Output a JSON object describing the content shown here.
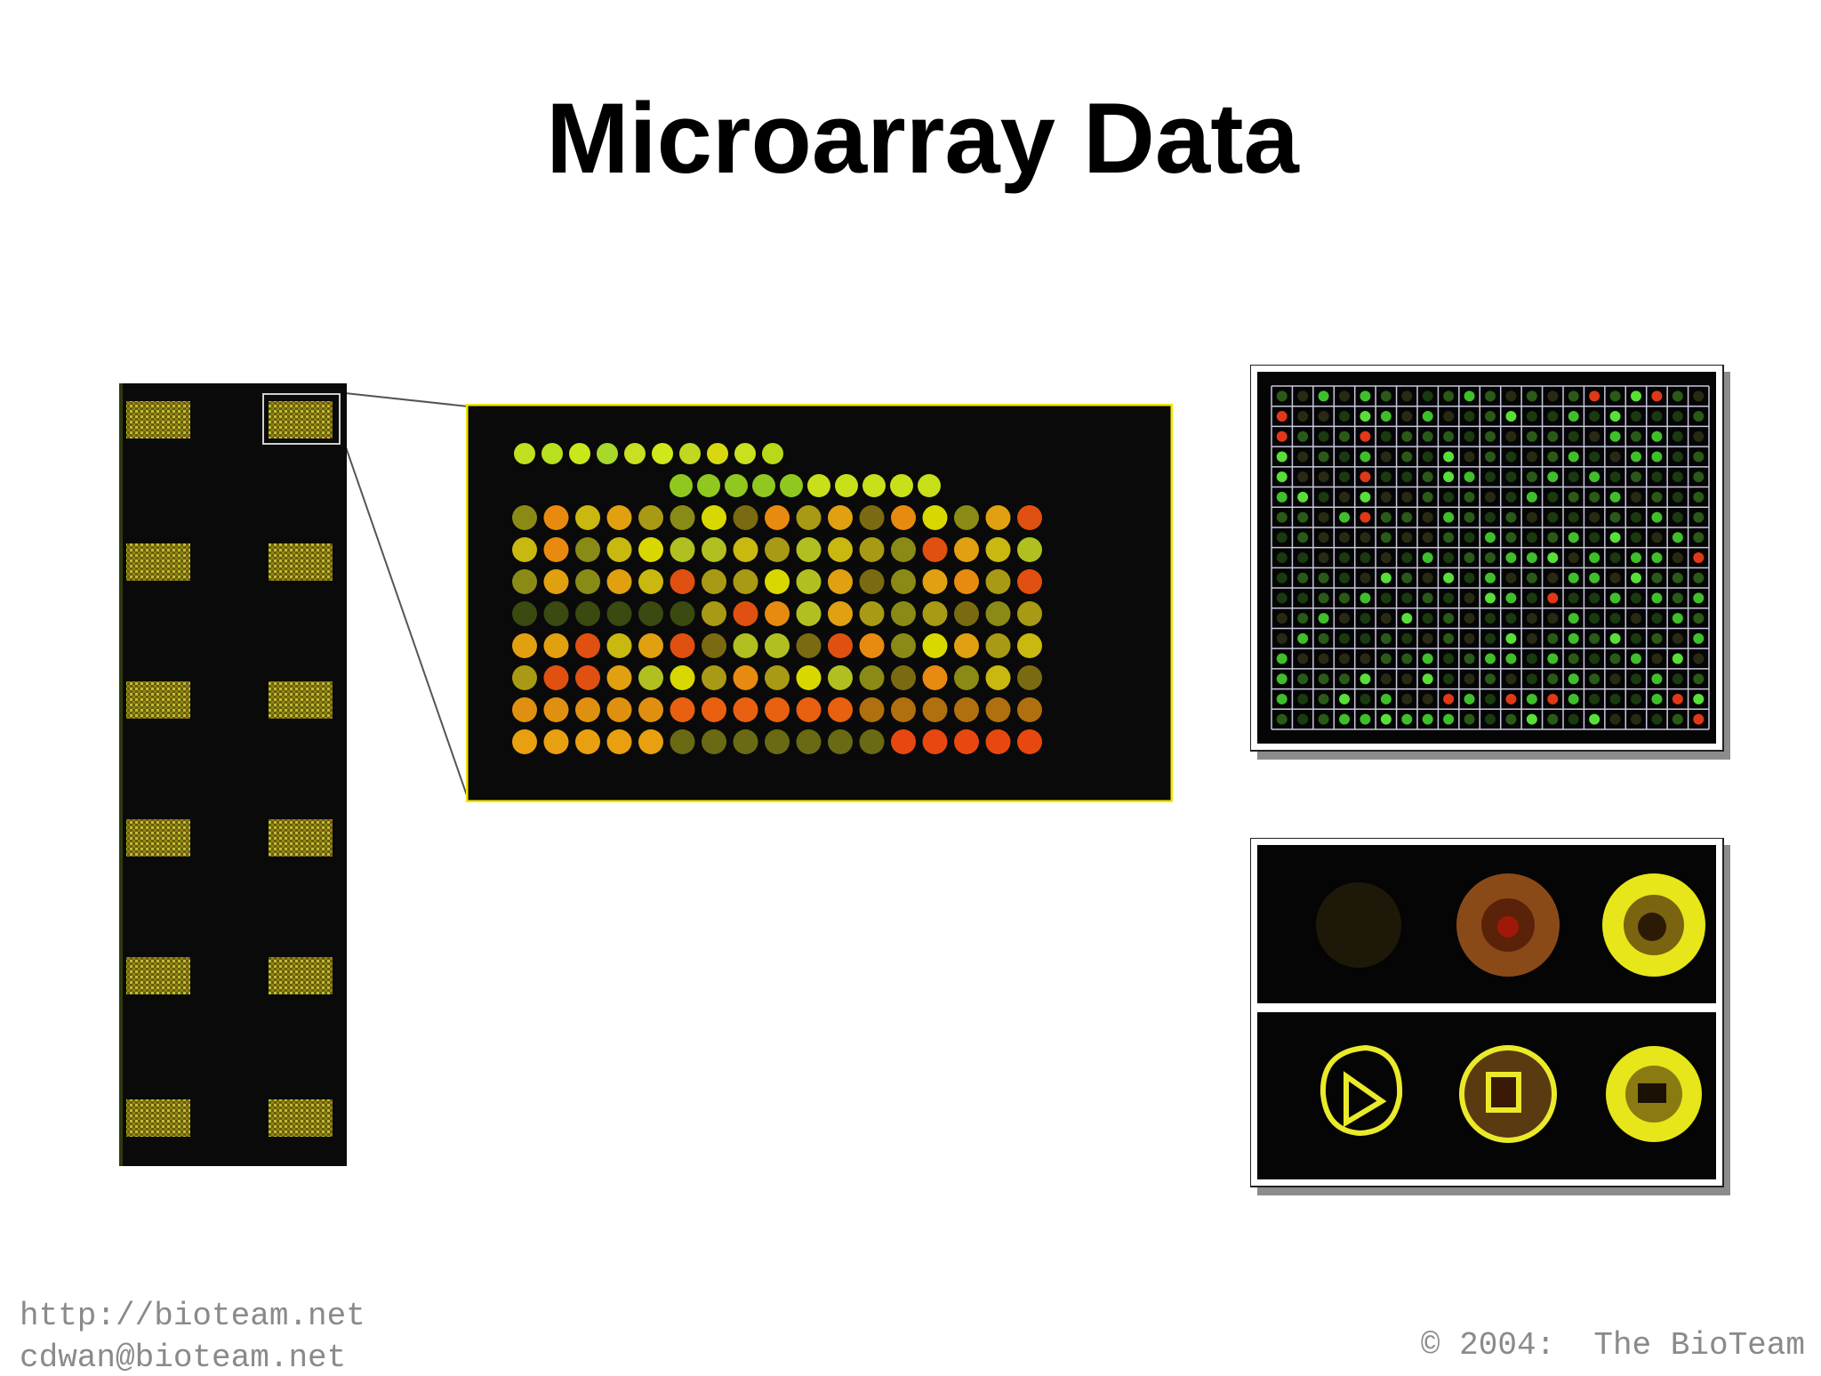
{
  "slide": {
    "title": "Microarray Data"
  },
  "footer": {
    "url": "http://bioteam.net",
    "email": "cdwan@bioteam.net",
    "copyright": "© 2004:  The BioTeam"
  },
  "colors": {
    "background": "#ffffff",
    "array_background": "#0a0a0a",
    "zoom_border": "#f2e600",
    "spot_green": "#3fbf2a",
    "spot_yellow": "#d8d800",
    "spot_orange": "#e88a10",
    "spot_red": "#e02810",
    "grid_line": "#c8c8e0",
    "footer_text": "#8a8a8a"
  },
  "images": [
    {
      "name": "microarray-slide-overview",
      "description_icon": "microarray-slide-image"
    },
    {
      "name": "microarray-zoomed-block",
      "description_icon": "spot-block-image"
    },
    {
      "name": "gridded-spot-array",
      "description_icon": "grid-overlay-image"
    },
    {
      "name": "spot-segmentation-closeup",
      "description_icon": "segmentation-image"
    }
  ]
}
